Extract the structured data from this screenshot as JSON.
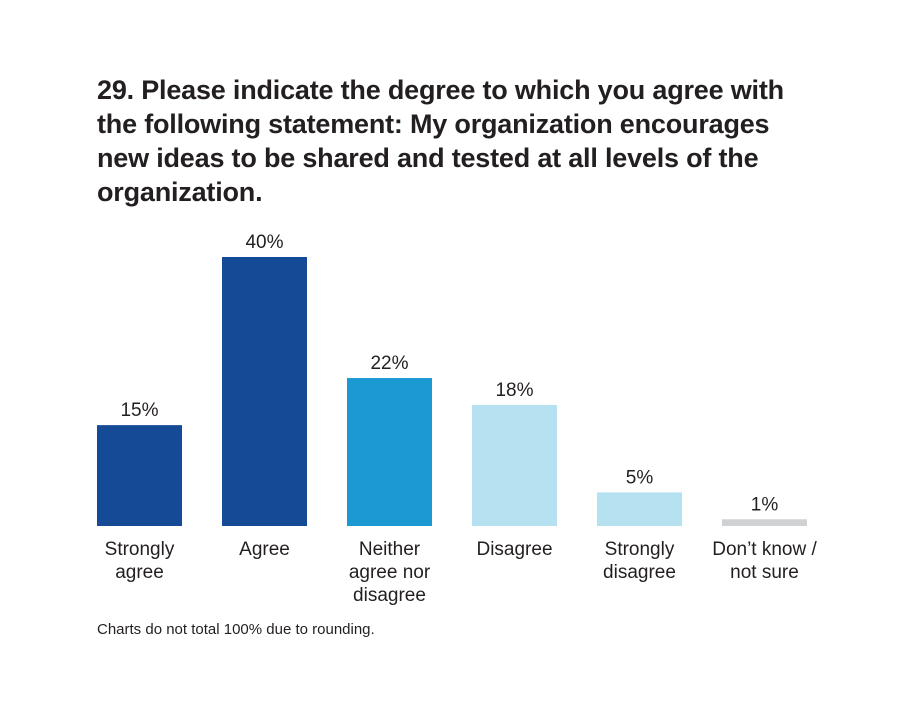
{
  "title": "29. Please indicate the degree to which you agree with the following statement: My organization encourages new ideas to be shared and tested at all levels of the organization.",
  "note": "Charts do not total 100% due to rounding.",
  "chart_data": {
    "type": "bar",
    "categories": [
      [
        "Strongly",
        "agree"
      ],
      [
        "Agree"
      ],
      [
        "Neither",
        "agree nor",
        "disagree"
      ],
      [
        "Disagree"
      ],
      [
        "Strongly",
        "disagree"
      ],
      [
        "Don’t know /",
        "not sure"
      ]
    ],
    "values": [
      15,
      40,
      22,
      18,
      5,
      1
    ],
    "value_labels": [
      "15%",
      "40%",
      "22%",
      "18%",
      "5%",
      "1%"
    ],
    "colors": [
      "#154b96",
      "#154b96",
      "#1b99d3",
      "#b5e1f1",
      "#b5e1f1",
      "#cfd1d3"
    ],
    "ylim": [
      0,
      40
    ],
    "grid": false,
    "legend": "none"
  }
}
